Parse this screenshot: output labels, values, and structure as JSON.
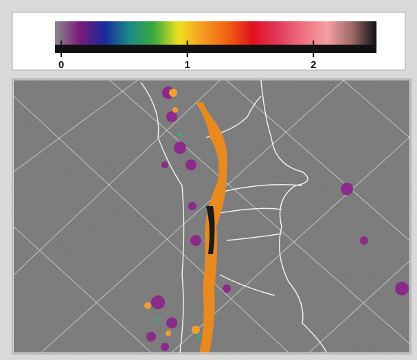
{
  "colorbar": {
    "lim": [
      -0.05,
      2.5
    ],
    "ticks": [
      0,
      1,
      2
    ],
    "colors": [
      "#8a8a8a",
      "#7a1a7a",
      "#1a2a9a",
      "#1a8a8a",
      "#3aaa3a",
      "#f0e020",
      "#f59a20",
      "#f06010",
      "#e01020",
      "#e03a5a",
      "#f07080",
      "#f5a0a0",
      "#a06a6a",
      "#101010"
    ]
  }
}
